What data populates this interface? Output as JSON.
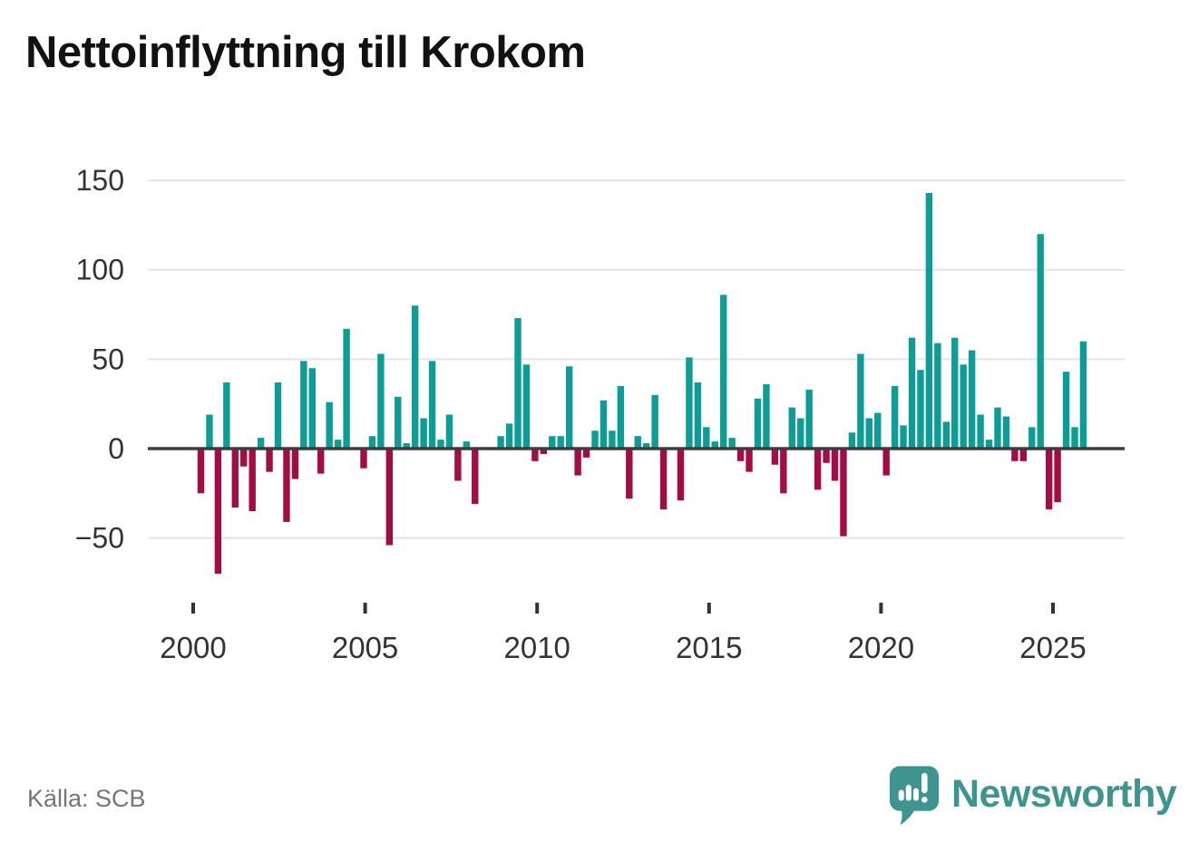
{
  "header": {
    "title": "Nettoinflyttning till Krokom"
  },
  "footer": {
    "source_label": "Källa: SCB",
    "brand": "Newsworthy"
  },
  "colors": {
    "positive": "#0d9d96",
    "negative": "#a30d45",
    "grid": "#e4e4e4",
    "zero_line": "#3d3d3d",
    "axis_text": "#333333",
    "title_text": "#121212",
    "source_text": "#767676",
    "brand_teal": "#3e948e",
    "icon_marks": "#ffffff"
  },
  "chart_data": {
    "type": "bar",
    "title": "Nettoinflyttning till Krokom",
    "x_unit": "quarter",
    "period": "quarterly",
    "start": "2000 Q1",
    "end": "2025 Q4",
    "ylim": [
      -75,
      155
    ],
    "grid": true,
    "legend": false,
    "y_ticks": [
      {
        "label": "150",
        "value": 150
      },
      {
        "label": "100",
        "value": 100
      },
      {
        "label": "50",
        "value": 50
      },
      {
        "label": "0",
        "value": 0
      },
      {
        "label": "−50",
        "value": -50
      }
    ],
    "x_ticks": [
      {
        "label": "2000",
        "year": 2000
      },
      {
        "label": "2005",
        "year": 2005
      },
      {
        "label": "2010",
        "year": 2010
      },
      {
        "label": "2015",
        "year": 2015
      },
      {
        "label": "2020",
        "year": 2020
      },
      {
        "label": "2025",
        "year": 2025
      }
    ],
    "values": [
      -25,
      19,
      -70,
      37,
      -33,
      -10,
      -35,
      6,
      -13,
      37,
      -41,
      -17,
      49,
      45,
      -14,
      26,
      5,
      67,
      0,
      -11,
      7,
      53,
      -54,
      29,
      3,
      80,
      17,
      49,
      5,
      19,
      -18,
      4,
      -31,
      0,
      0,
      7,
      14,
      73,
      47,
      -7,
      -3,
      7,
      7,
      46,
      -15,
      -5,
      10,
      27,
      10,
      35,
      -28,
      7,
      3,
      30,
      -34,
      0,
      -29,
      51,
      37,
      12,
      4,
      86,
      6,
      -7,
      -13,
      28,
      36,
      -9,
      -25,
      23,
      17,
      33,
      -23,
      -8,
      -18,
      -49,
      9,
      53,
      17,
      20,
      -15,
      35,
      13,
      62,
      44,
      143,
      59,
      15,
      62,
      47,
      55,
      19,
      5,
      23,
      18,
      -7,
      -7,
      12,
      120,
      -34,
      -30,
      43,
      12,
      60
    ]
  }
}
